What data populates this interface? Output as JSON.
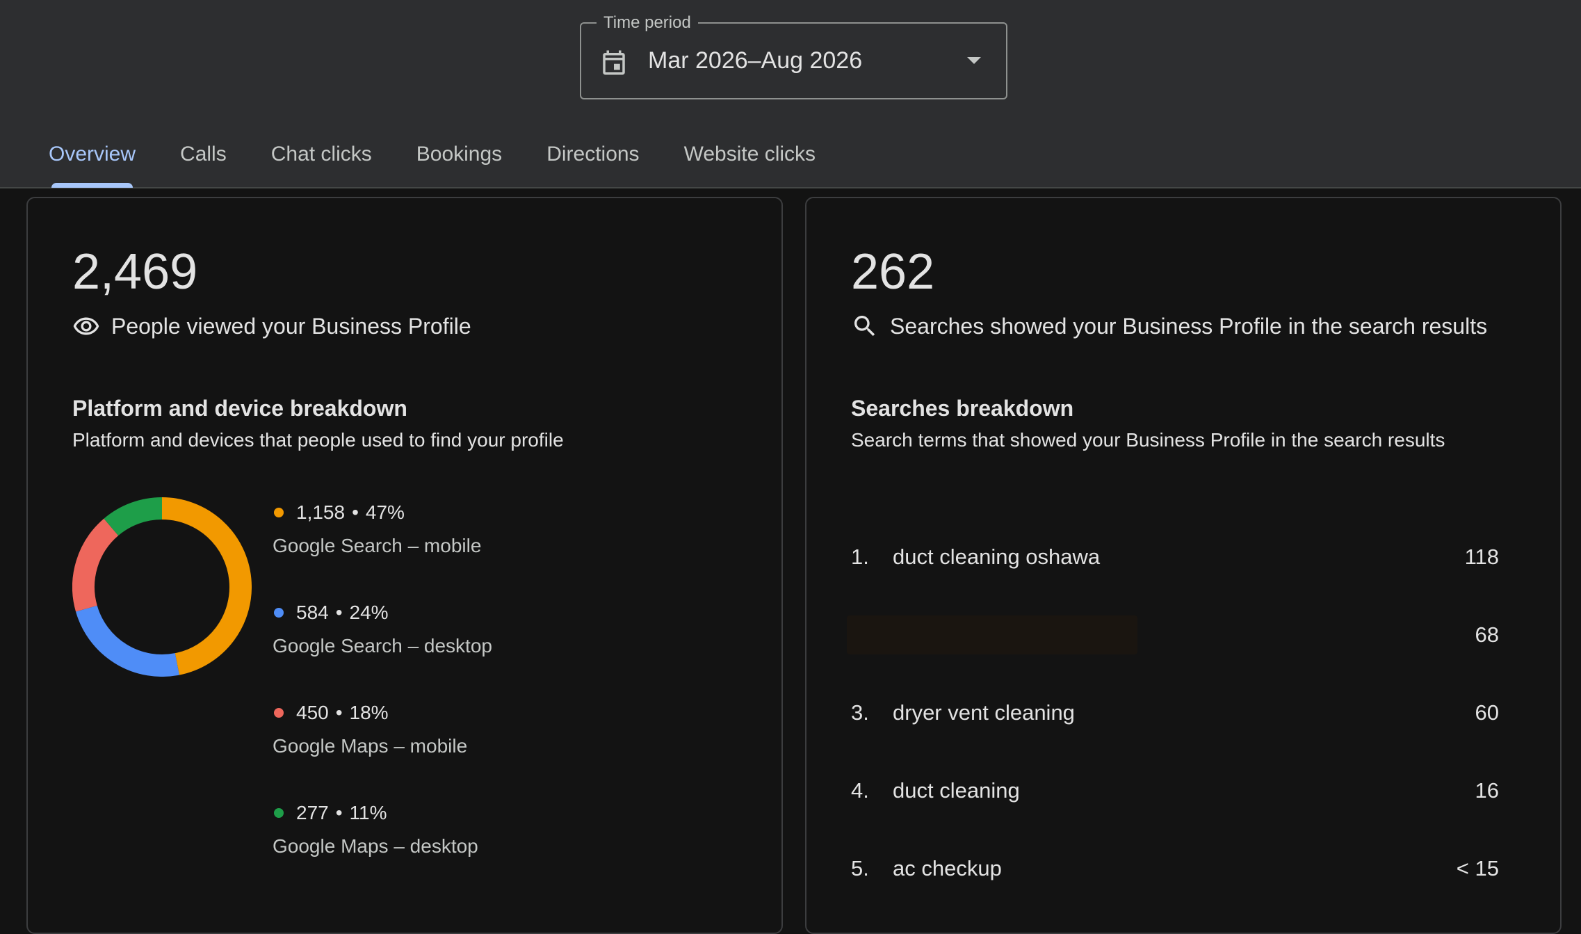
{
  "time_period": {
    "legend": "Time period",
    "value": "Mar 2026–Aug 2026"
  },
  "tabs": [
    {
      "label": "Overview",
      "active": true
    },
    {
      "label": "Calls"
    },
    {
      "label": "Chat clicks"
    },
    {
      "label": "Bookings"
    },
    {
      "label": "Directions"
    },
    {
      "label": "Website clicks"
    }
  ],
  "views_card": {
    "total": "2,469",
    "description": "People viewed your Business Profile",
    "breakdown_title": "Platform and device breakdown",
    "breakdown_subtitle": "Platform and devices that people used to find your profile",
    "items": [
      {
        "count": "1,158",
        "percent": "47%",
        "label": "Google Search – mobile",
        "value": 1158,
        "color": "#f29900"
      },
      {
        "count": "584",
        "percent": "24%",
        "label": "Google Search – desktop",
        "value": 584,
        "color": "#4f8df7"
      },
      {
        "count": "450",
        "percent": "18%",
        "label": "Google Maps – mobile",
        "value": 450,
        "color": "#ee675c"
      },
      {
        "count": "277",
        "percent": "11%",
        "label": "Google Maps – desktop",
        "value": 277,
        "color": "#1e9e49"
      }
    ]
  },
  "searches_card": {
    "total": "262",
    "description": "Searches showed your Business Profile in the search results",
    "breakdown_title": "Searches breakdown",
    "breakdown_subtitle": "Search terms that showed your Business Profile in the search results",
    "items": [
      {
        "rank": "1.",
        "term": "duct cleaning oshawa",
        "count": "118"
      },
      {
        "rank": "",
        "term": "",
        "count": "68",
        "redacted": true
      },
      {
        "rank": "3.",
        "term": "dryer vent cleaning",
        "count": "60"
      },
      {
        "rank": "4.",
        "term": "duct cleaning",
        "count": "16"
      },
      {
        "rank": "5.",
        "term": "ac checkup",
        "count": "< 15"
      }
    ]
  }
}
